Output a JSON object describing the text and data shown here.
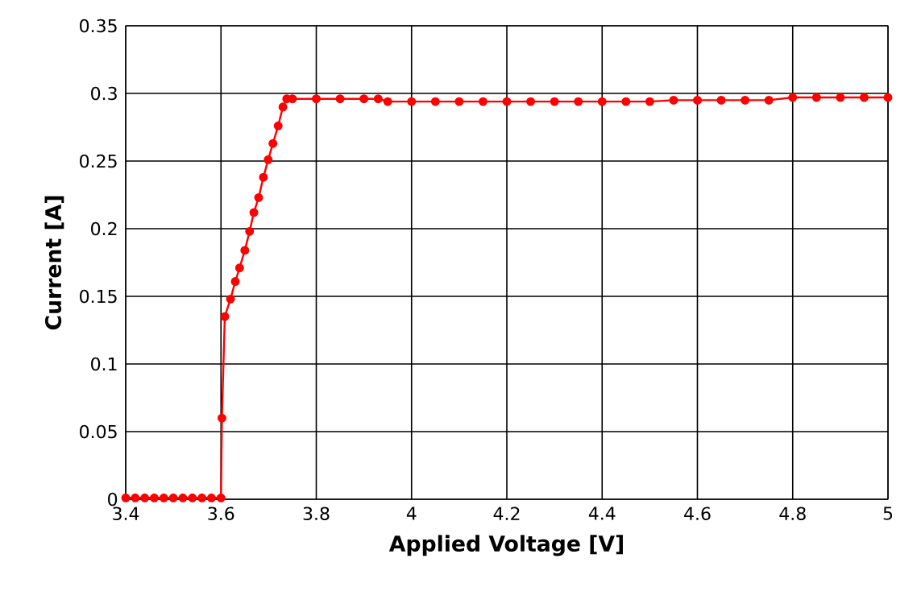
{
  "chart_data": {
    "type": "line",
    "xlabel": "Applied Voltage [V]",
    "ylabel": "Current [A]",
    "xlim": [
      3.4,
      5
    ],
    "ylim": [
      0,
      0.35
    ],
    "xticks": [
      3.4,
      3.6,
      3.8,
      4,
      4.2,
      4.4,
      4.6,
      4.8,
      5
    ],
    "yticks": [
      0,
      0.05,
      0.1,
      0.15,
      0.2,
      0.25,
      0.3,
      0.35
    ],
    "grid": true,
    "marker": "circle",
    "line_style": "solid",
    "series": [
      {
        "color": "#ff0000",
        "x": [
          3.4,
          3.42,
          3.44,
          3.46,
          3.48,
          3.5,
          3.52,
          3.54,
          3.56,
          3.58,
          3.6,
          3.602,
          3.608,
          3.62,
          3.63,
          3.639,
          3.65,
          3.66,
          3.669,
          3.679,
          3.689,
          3.699,
          3.709,
          3.72,
          3.73,
          3.738,
          3.75,
          3.8,
          3.85,
          3.9,
          3.93,
          3.95,
          4,
          4.05,
          4.1,
          4.15,
          4.2,
          4.25,
          4.3,
          4.35,
          4.4,
          4.45,
          4.5,
          4.55,
          4.6,
          4.65,
          4.7,
          4.75,
          4.8,
          4.85,
          4.9,
          4.95,
          5
        ],
        "values": [
          0.001,
          0.001,
          0.001,
          0.001,
          0.001,
          0.001,
          0.001,
          0.001,
          0.001,
          0.001,
          0.001,
          0.06,
          0.135,
          0.148,
          0.161,
          0.171,
          0.184,
          0.198,
          0.212,
          0.223,
          0.238,
          0.251,
          0.263,
          0.276,
          0.29,
          0.296,
          0.296,
          0.296,
          0.296,
          0.296,
          0.296,
          0.294,
          0.294,
          0.294,
          0.294,
          0.294,
          0.294,
          0.294,
          0.294,
          0.294,
          0.294,
          0.294,
          0.294,
          0.295,
          0.295,
          0.295,
          0.295,
          0.295,
          0.297,
          0.297,
          0.297,
          0.297,
          0.297
        ]
      }
    ]
  }
}
